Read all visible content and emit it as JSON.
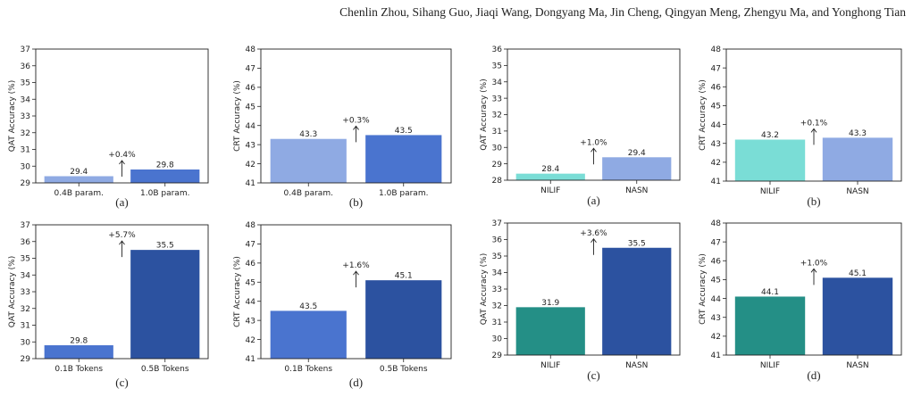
{
  "header": {
    "authors": "Chenlin Zhou, Sihang Guo, Jiaqi Wang, Dongyang Ma, Jin Cheng, Qingyan Meng, Zhengyu Ma, and Yonghong Tian"
  },
  "chart_data": [
    {
      "id": "L-a",
      "type": "bar",
      "caption": "(a)",
      "ylabel": "QAT Accuracy (%)",
      "ylim": [
        29,
        37
      ],
      "categories": [
        "0.4B param.",
        "1.0B param."
      ],
      "values": [
        29.4,
        29.8
      ],
      "value_labels": [
        "29.4",
        "29.8"
      ],
      "bar_colors": [
        "#8FAAE3",
        "#4A74CF"
      ],
      "annotation": "+0.4%",
      "grid": false
    },
    {
      "id": "L-b",
      "type": "bar",
      "caption": "(b)",
      "ylabel": "CRT Accuracy (%)",
      "ylim": [
        41,
        48
      ],
      "categories": [
        "0.4B param.",
        "1.0B param."
      ],
      "values": [
        43.3,
        43.5
      ],
      "value_labels": [
        "43.3",
        "43.5"
      ],
      "bar_colors": [
        "#8FAAE3",
        "#4A74CF"
      ],
      "annotation": "+0.3%",
      "grid": false
    },
    {
      "id": "R-a",
      "type": "bar",
      "caption": "(a)",
      "ylabel": "QAT Accuracy (%)",
      "ylim": [
        28,
        36
      ],
      "categories": [
        "NILIF",
        "NASN"
      ],
      "values": [
        28.4,
        29.4
      ],
      "value_labels": [
        "28.4",
        "29.4"
      ],
      "bar_colors": [
        "#7ADDD6",
        "#8FAAE3"
      ],
      "annotation": "+1.0%",
      "grid": false
    },
    {
      "id": "R-b",
      "type": "bar",
      "caption": "(b)",
      "ylabel": "CRT Accuracy (%)",
      "ylim": [
        41,
        48
      ],
      "categories": [
        "NILIF",
        "NASN"
      ],
      "values": [
        43.2,
        43.3
      ],
      "value_labels": [
        "43.2",
        "43.3"
      ],
      "bar_colors": [
        "#7ADDD6",
        "#8FAAE3"
      ],
      "annotation": "+0.1%",
      "grid": false
    },
    {
      "id": "L-c",
      "type": "bar",
      "caption": "(c)",
      "ylabel": "QAT Accuracy (%)",
      "ylim": [
        29,
        37
      ],
      "categories": [
        "0.1B Tokens",
        "0.5B Tokens"
      ],
      "values": [
        29.8,
        35.5
      ],
      "value_labels": [
        "29.8",
        "35.5"
      ],
      "bar_colors": [
        "#4A74CF",
        "#2C52A0"
      ],
      "annotation": "+5.7%",
      "grid": false
    },
    {
      "id": "L-d",
      "type": "bar",
      "caption": "(d)",
      "ylabel": "CRT Accuracy (%)",
      "ylim": [
        41,
        48
      ],
      "categories": [
        "0.1B Tokens",
        "0.5B Tokens"
      ],
      "values": [
        43.5,
        45.1
      ],
      "value_labels": [
        "43.5",
        "45.1"
      ],
      "bar_colors": [
        "#4A74CF",
        "#2C52A0"
      ],
      "annotation": "+1.6%",
      "grid": false
    },
    {
      "id": "R-c",
      "type": "bar",
      "caption": "(c)",
      "ylabel": "QAT Accuracy (%)",
      "ylim": [
        29,
        37
      ],
      "categories": [
        "NILIF",
        "NASN"
      ],
      "values": [
        31.9,
        35.5
      ],
      "value_labels": [
        "31.9",
        "35.5"
      ],
      "bar_colors": [
        "#248F86",
        "#2C52A0"
      ],
      "annotation": "+3.6%",
      "grid": false
    },
    {
      "id": "R-d",
      "type": "bar",
      "caption": "(d)",
      "ylabel": "CRT Accuracy (%)",
      "ylim": [
        41,
        48
      ],
      "categories": [
        "NILIF",
        "NASN"
      ],
      "values": [
        44.1,
        45.1
      ],
      "value_labels": [
        "44.1",
        "45.1"
      ],
      "bar_colors": [
        "#248F86",
        "#2C52A0"
      ],
      "annotation": "+1.0%",
      "grid": false
    }
  ]
}
